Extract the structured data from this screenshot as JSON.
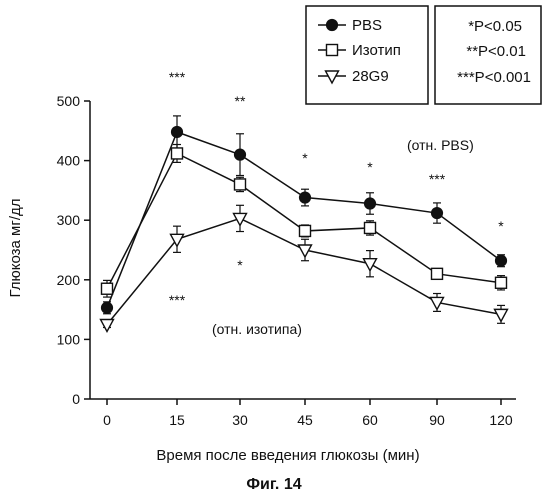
{
  "chart_data": {
    "type": "line",
    "title": "",
    "xlabel": "Время после введения глюкозы (мин)",
    "ylabel": "Глюкоза мг/дл",
    "caption": "Фиг. 14",
    "categories": [
      "0",
      "15",
      "30",
      "45",
      "60",
      "90",
      "120"
    ],
    "ylim": [
      0,
      500
    ],
    "yticks": [
      "0",
      "100",
      "200",
      "300",
      "400",
      "500"
    ],
    "grid": false,
    "legend_position": "top-right",
    "series": [
      {
        "name": "PBS",
        "marker": "filled-circle",
        "values": [
          153,
          448,
          410,
          338,
          328,
          312,
          232
        ],
        "errors": [
          10,
          27,
          35,
          14,
          18,
          17,
          10
        ]
      },
      {
        "name": "Изотип",
        "marker": "open-square",
        "values": [
          185,
          412,
          360,
          282,
          287,
          210,
          195
        ],
        "errors": [
          14,
          15,
          12,
          10,
          12,
          7,
          12
        ]
      },
      {
        "name": "28G9",
        "marker": "open-triangle-down",
        "values": [
          125,
          268,
          303,
          250,
          227,
          162,
          142
        ],
        "errors": [
          5,
          22,
          22,
          18,
          22,
          15,
          15
        ]
      }
    ],
    "significance_legend": [
      "*P<0.05",
      "**P<0.01",
      "***P<0.001"
    ],
    "annotations_top": [
      "***",
      "**",
      "*",
      "*",
      "***",
      "*"
    ],
    "annotations_top_label": "(отн. PBS)",
    "annotations_bottom": [
      "***",
      "*"
    ],
    "annotations_bottom_label": "(отн. изотипа)"
  }
}
